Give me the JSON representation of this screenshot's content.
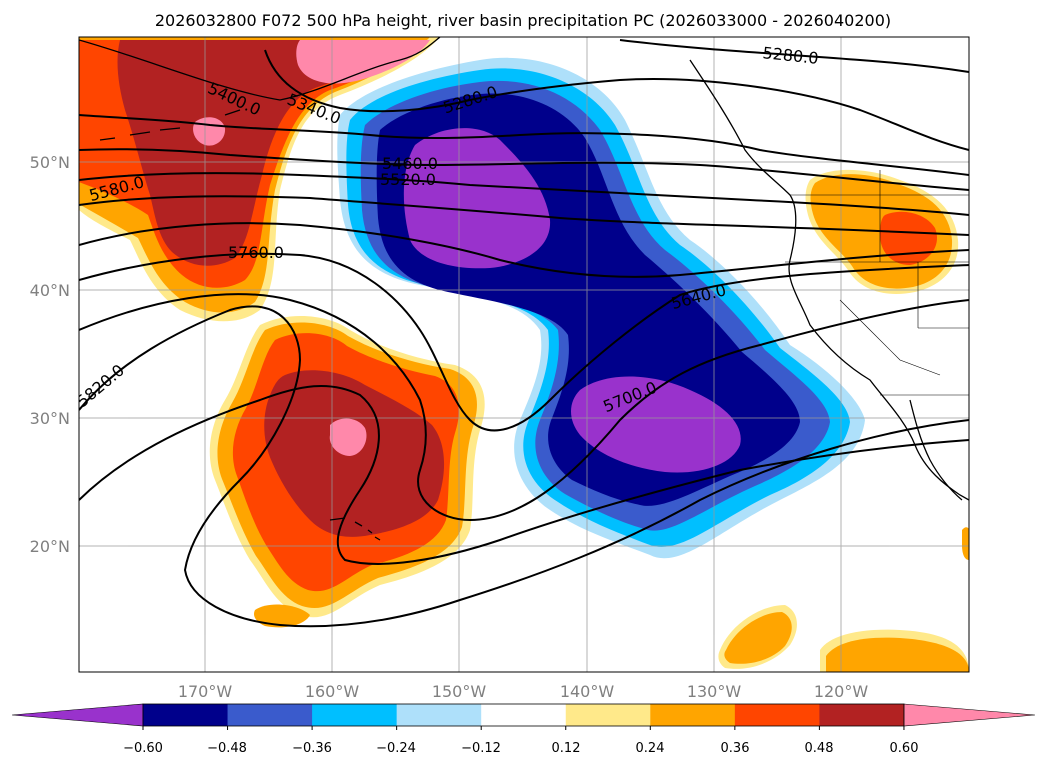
{
  "title": "2026032800 F072 500 hPa height, river basin precipitation PC (2026033000 - 2026040200)",
  "map": {
    "lat_labels": [
      "50°N",
      "40°N",
      "30°N",
      "20°N"
    ],
    "lon_labels": [
      "170°W",
      "160°W",
      "150°W",
      "140°W",
      "130°W",
      "120°W"
    ],
    "gridlines": true
  },
  "contours": {
    "height_labels": [
      "5280.0",
      "5280.0",
      "5400.0",
      "5340.0",
      "5460.0",
      "5520.0",
      "5580.0",
      "5640.0",
      "5700.0",
      "5760.0",
      "5820.0"
    ]
  },
  "colorbar": {
    "ticks": [
      "−0.60",
      "−0.48",
      "−0.36",
      "−0.24",
      "−0.12",
      "0.12",
      "0.24",
      "0.36",
      "0.48",
      "0.60"
    ],
    "colors": [
      "#9932cc",
      "#00008b",
      "#3a5bcc",
      "#00bfff",
      "#aee0fa",
      "#ffffff",
      "#ffe98a",
      "#ffa500",
      "#ff4500",
      "#b22222",
      "#ff88aa"
    ]
  }
}
